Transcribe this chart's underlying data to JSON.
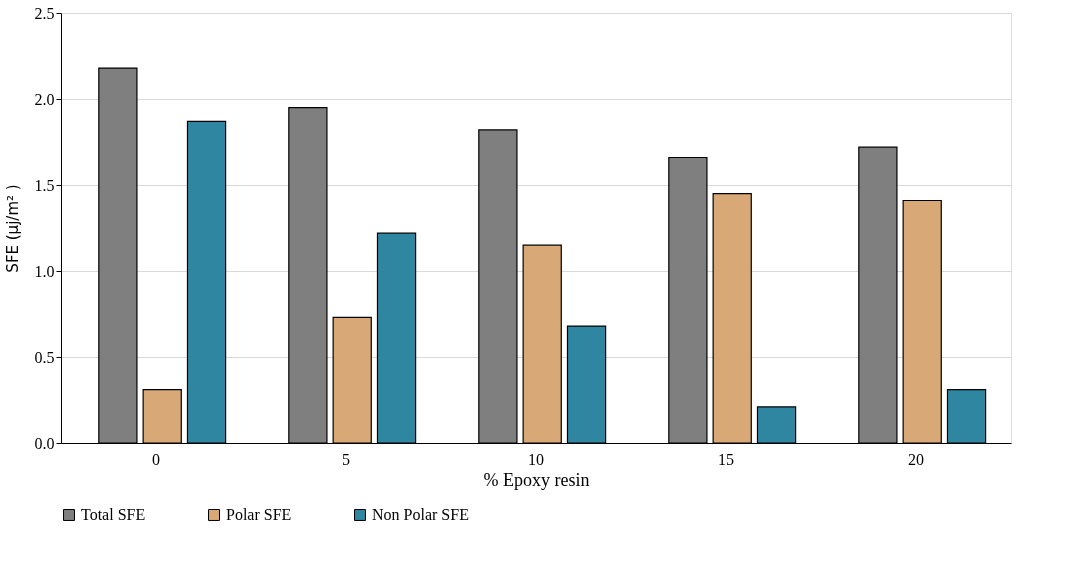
{
  "chart_data": {
    "type": "bar",
    "xlabel": "% Epoxy resin",
    "ylabel": "SFE (µj/m² )",
    "categories": [
      "0",
      "5",
      "10",
      "15",
      "20"
    ],
    "series": [
      {
        "name": "Total SFE",
        "color": "#7f7f7f",
        "values": [
          2.18,
          1.95,
          1.82,
          1.66,
          1.72
        ]
      },
      {
        "name": "Polar SFE",
        "color": "#d9a877",
        "values": [
          0.31,
          0.73,
          1.15,
          1.45,
          1.41
        ]
      },
      {
        "name": "Non Polar SFE",
        "color": "#2e86a0",
        "values": [
          1.87,
          1.22,
          0.68,
          0.21,
          0.31
        ]
      }
    ],
    "ylim": [
      0,
      2.5
    ],
    "yticks": [
      {
        "value": 0,
        "label": "0.0"
      },
      {
        "value": 0.5,
        "label": "0.5"
      },
      {
        "value": 1,
        "label": "1.0"
      },
      {
        "value": 1.5,
        "label": "1.5"
      },
      {
        "value": 2,
        "label": "2.0"
      },
      {
        "value": 2.5,
        "label": "2.5"
      }
    ],
    "grid": "y",
    "legend": "bottom"
  }
}
